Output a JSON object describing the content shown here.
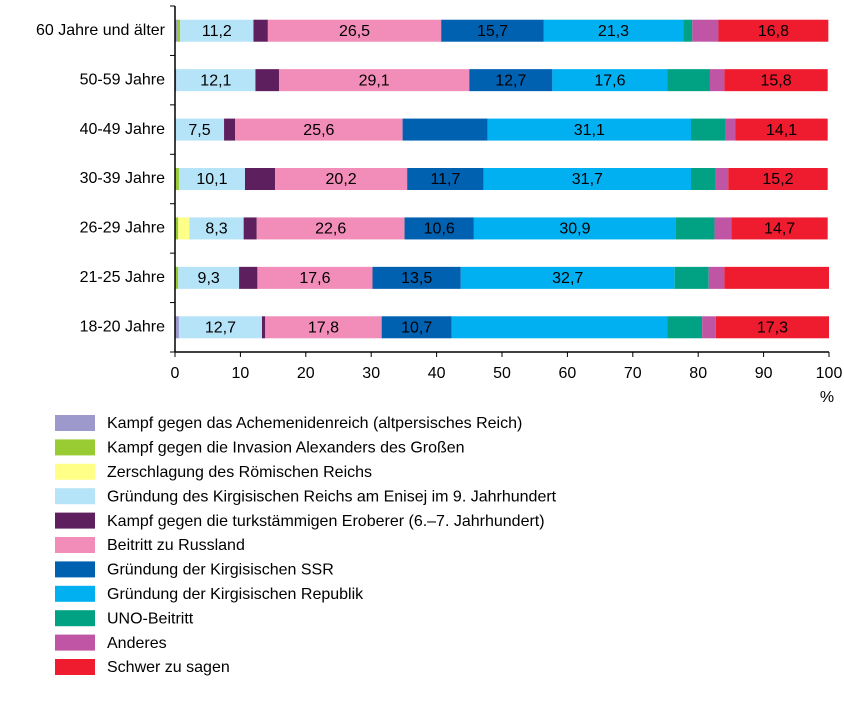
{
  "chart_data": {
    "type": "stacked_bar_horizontal",
    "x_label": "%",
    "categories": [
      "60 Jahre und älter",
      "50-59 Jahre",
      "40-49 Jahre",
      "30-39 Jahre",
      "26-29 Jahre",
      "21-25 Jahre",
      "18-20 Jahre"
    ],
    "xlim": [
      0,
      100
    ],
    "xticks": [
      0,
      10,
      20,
      30,
      40,
      50,
      60,
      70,
      80,
      90,
      100
    ],
    "legend": "bottom",
    "series": [
      {
        "name": "Kampf gegen das Achemenidenreich (altpersisches Reich)",
        "color": "#9e99cc",
        "values": [
          0.3,
          0.2,
          0,
          0,
          0,
          0,
          0.6
        ],
        "value_labels": [
          null,
          null,
          null,
          null,
          null,
          null,
          null
        ]
      },
      {
        "name": "Kampf gegen die Invasion Alexanders des Großen",
        "color": "#99cc33",
        "values": [
          0.5,
          0,
          0,
          0.6,
          0.5,
          0.5,
          0
        ],
        "value_labels": [
          null,
          null,
          null,
          null,
          null,
          null,
          null
        ]
      },
      {
        "name": "Zerschlagung des Römischen Reichs",
        "color": "#ffff88",
        "values": [
          0,
          0,
          0,
          0,
          1.7,
          0,
          0
        ],
        "value_labels": [
          null,
          null,
          null,
          null,
          null,
          null,
          null
        ]
      },
      {
        "name": "Gründung des Kirgisischen Reichs am Enisej im 9. Jahrhundert",
        "color": "#b5e3f7",
        "values": [
          11.2,
          12.1,
          7.5,
          10.1,
          8.3,
          9.3,
          12.7
        ],
        "value_labels": [
          "11,2",
          "12,1",
          "7,5",
          "10,1",
          "8,3",
          "9,3",
          "12,7"
        ]
      },
      {
        "name": "Kampf gegen die turkstämmigen Eroberer (6.–7. Jahrhundert)",
        "color": "#5e1f5e",
        "values": [
          2.2,
          3.6,
          1.7,
          4.6,
          2.0,
          2.8,
          0.5
        ],
        "value_labels": [
          null,
          null,
          null,
          null,
          null,
          null,
          null
        ]
      },
      {
        "name": "Beitritt zu Russland",
        "color": "#f28cb8",
        "values": [
          26.5,
          29.1,
          25.6,
          20.2,
          22.6,
          17.6,
          17.8
        ],
        "value_labels": [
          "26,5",
          "29,1",
          "25,6",
          "20,2",
          "22,6",
          "17,6",
          "17,8"
        ]
      },
      {
        "name": "Gründung der Kirgisischen SSR",
        "color": "#0061b1",
        "values": [
          15.7,
          12.7,
          13,
          11.7,
          10.6,
          13.5,
          10.7
        ],
        "value_labels": [
          "15,7",
          "12,7",
          null,
          "11,7",
          "10,6",
          "13,5",
          "10,7"
        ]
      },
      {
        "name": "Gründung der Kirgisischen Republik",
        "color": "#00b0f0",
        "values": [
          21.3,
          17.6,
          31.1,
          31.7,
          30.9,
          32.7,
          33
        ],
        "value_labels": [
          "21,3",
          "17,6",
          "31,1",
          "31,7",
          "30,9",
          "32,7",
          null
        ]
      },
      {
        "name": "UNO-Beitritt",
        "color": "#00a283",
        "values": [
          1.4,
          6.5,
          5.2,
          3.8,
          5.9,
          5.2,
          5.3
        ],
        "value_labels": [
          null,
          null,
          null,
          null,
          null,
          null,
          null
        ]
      },
      {
        "name": "Anderes",
        "color": "#c055a5",
        "values": [
          4.0,
          2.2,
          1.6,
          1.9,
          2.6,
          2.4,
          2.1
        ],
        "value_labels": [
          null,
          null,
          null,
          null,
          null,
          null,
          null
        ]
      },
      {
        "name": "Schwer zu sagen",
        "color": "#ee1c2e",
        "values": [
          16.8,
          15.8,
          14.1,
          15.2,
          14.7,
          16,
          17.3
        ],
        "value_labels": [
          "16,8",
          "15,8",
          "14,1",
          "15,2",
          "14,7",
          null,
          "17,3"
        ]
      }
    ]
  }
}
